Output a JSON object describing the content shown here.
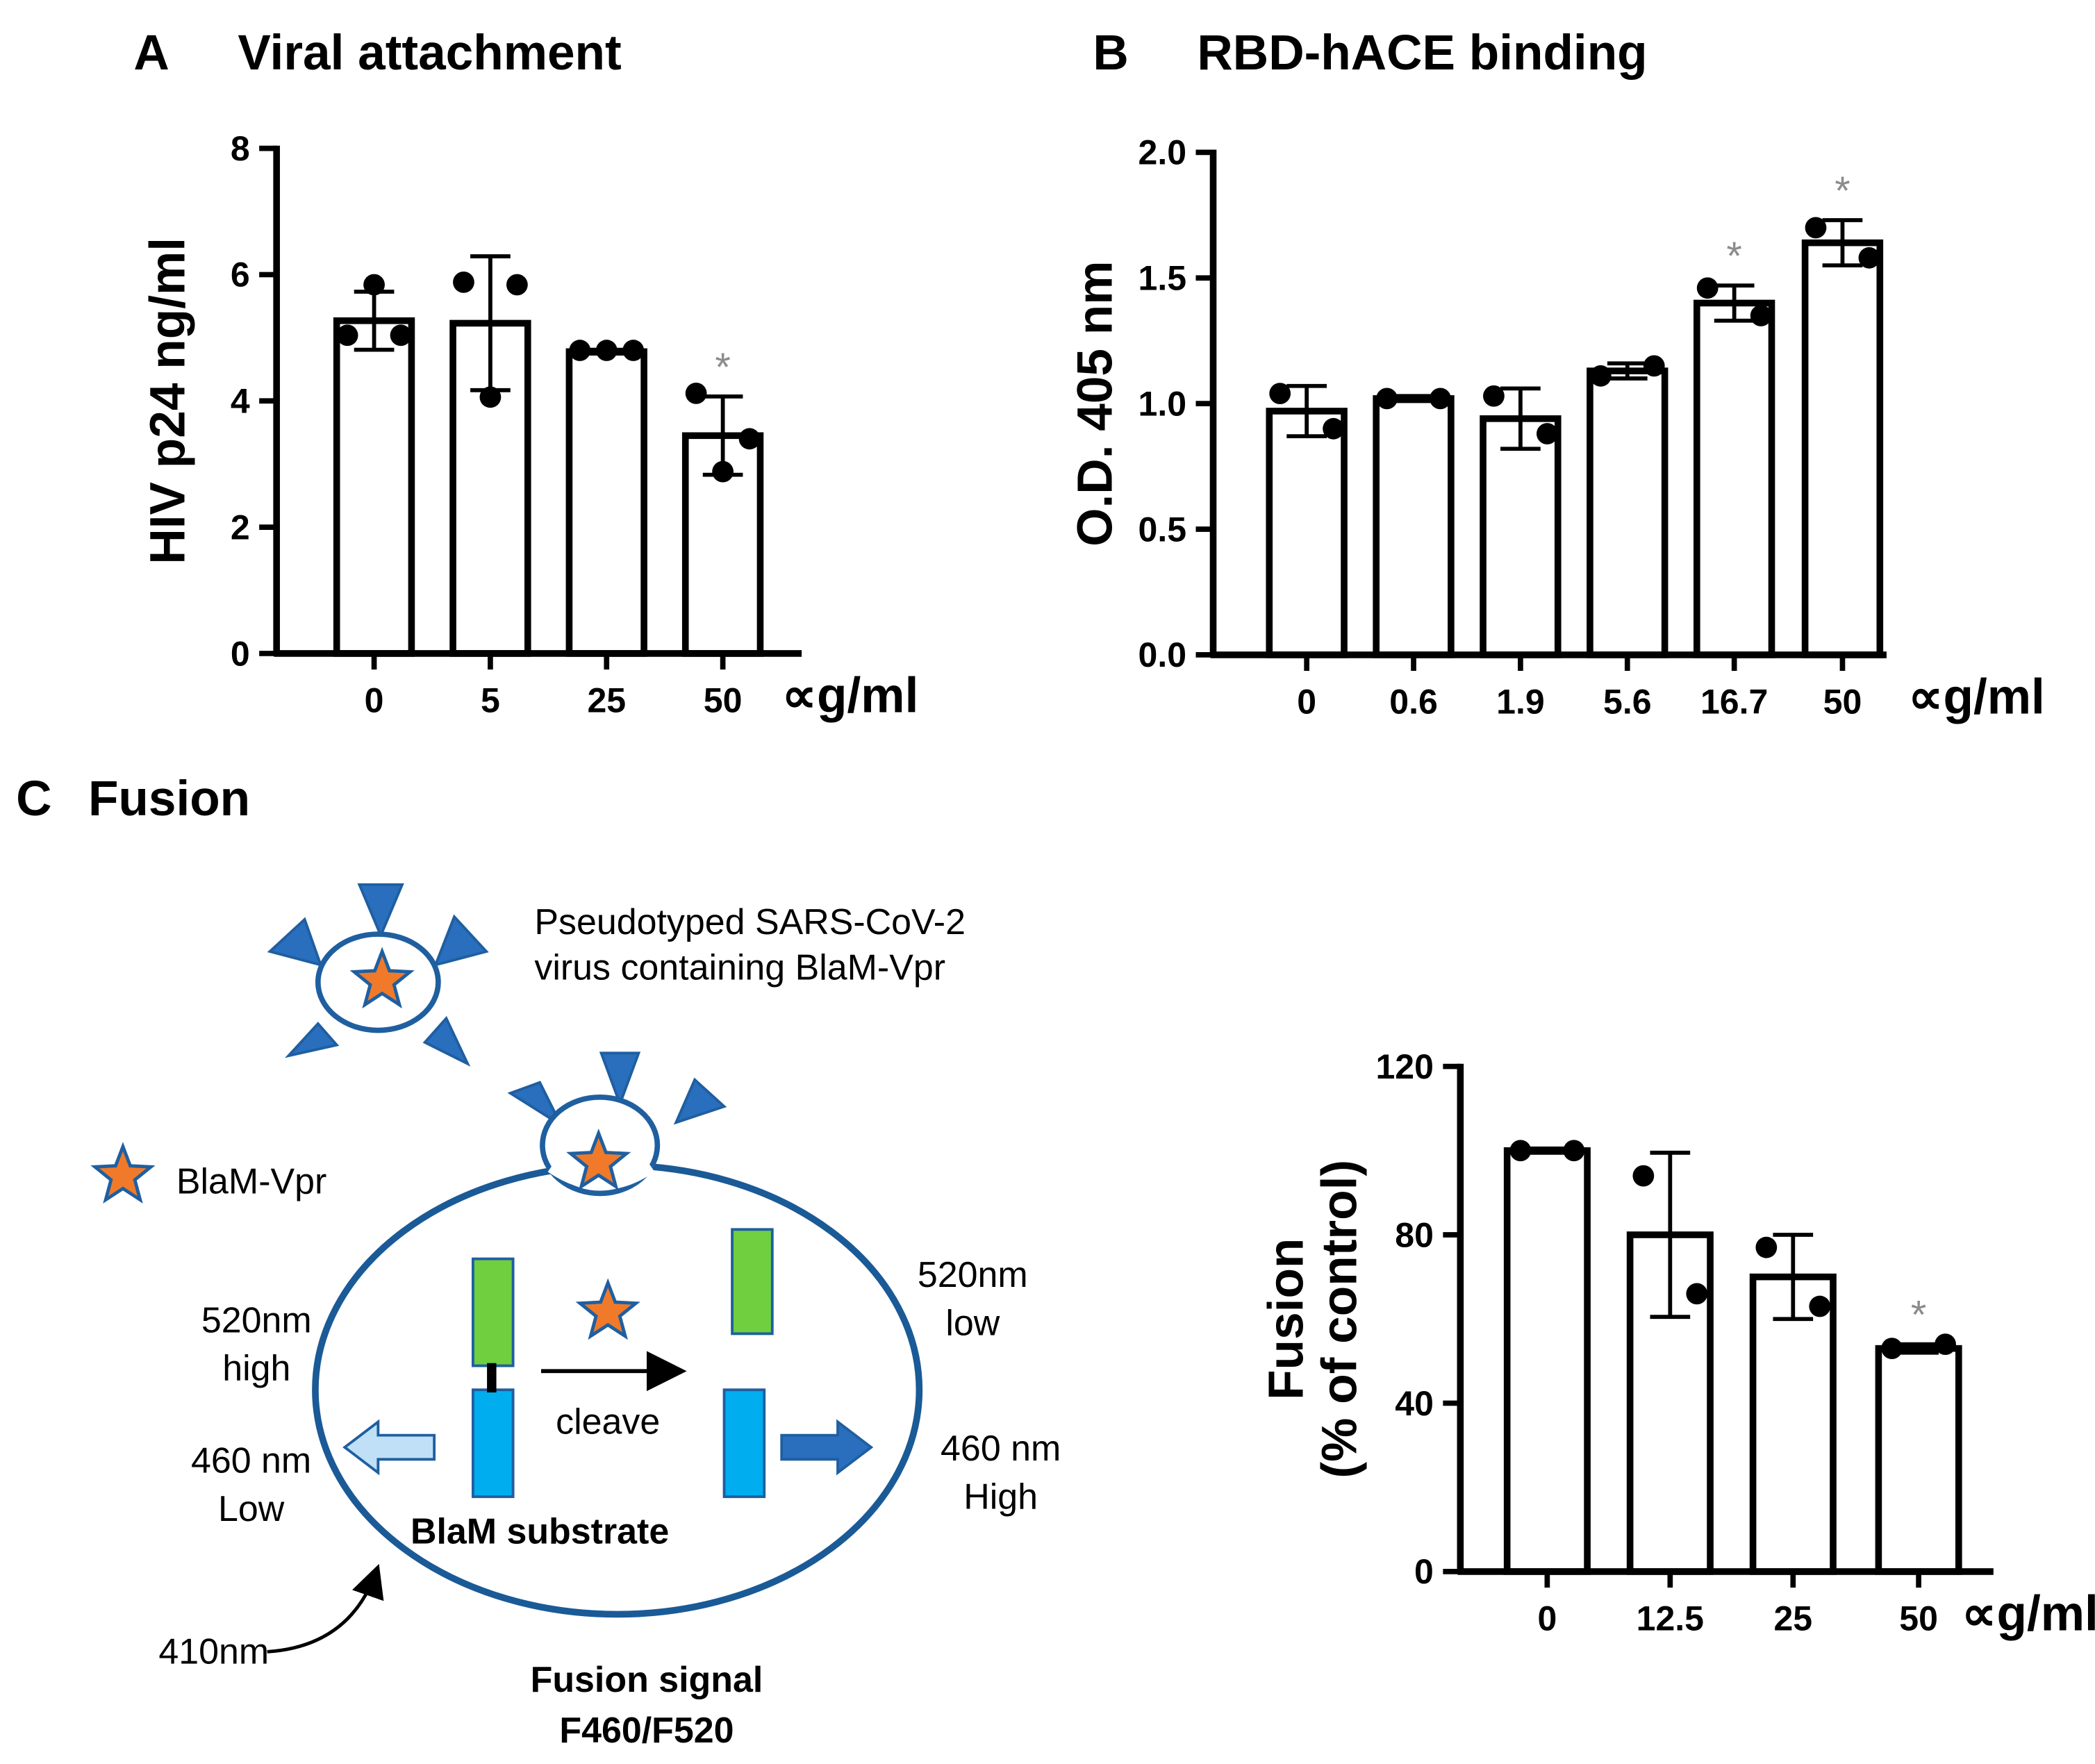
{
  "chart_data": [
    {
      "type": "bar",
      "panel": "A",
      "title": "Viral attachment",
      "ylabel": "HIV p24 ng/ml",
      "xunit": "∝g/ml",
      "categories": [
        "0",
        "5",
        "25",
        "50"
      ],
      "values": [
        5.27,
        5.23,
        4.78,
        3.45
      ],
      "errors": [
        0.46,
        1.06,
        0.03,
        0.62
      ],
      "points": [
        [
          5.04,
          5.84,
          5.04
        ],
        [
          5.88,
          4.06,
          5.84
        ],
        [
          4.8,
          4.8,
          4.8
        ],
        [
          4.12,
          2.88,
          3.4
        ]
      ],
      "significance": [
        null,
        null,
        null,
        "*"
      ],
      "color": "#ffffff",
      "ylim": [
        0,
        8
      ],
      "yticks": [
        0,
        2,
        4,
        6,
        8
      ]
    },
    {
      "type": "bar",
      "panel": "B",
      "title": "RBD-hACE binding",
      "ylabel": "O.D. 405 nm",
      "xunit": "∝g/ml",
      "categories": [
        "0",
        "0.6",
        "1.9",
        "5.6",
        "16.7",
        "50"
      ],
      "values": [
        0.97,
        1.02,
        0.94,
        1.13,
        1.4,
        1.64
      ],
      "errors": [
        0.1,
        0.01,
        0.12,
        0.03,
        0.07,
        0.09
      ],
      "points": [
        [
          1.04,
          0.9
        ],
        [
          1.02,
          1.02
        ],
        [
          1.03,
          0.88
        ],
        [
          1.11,
          1.15
        ],
        [
          1.46,
          1.35
        ],
        [
          1.7,
          1.58
        ]
      ],
      "significance": [
        null,
        null,
        null,
        null,
        "*",
        "*"
      ],
      "color": "#ffffff",
      "ylim": [
        0,
        2
      ],
      "yticks": [
        {
          "value": 0,
          "label": "0.0"
        },
        {
          "value": 0.5,
          "label": "0.5"
        },
        {
          "value": 1,
          "label": "1.0"
        },
        {
          "value": 1.5,
          "label": "1.5"
        },
        {
          "value": 2,
          "label": "2.0"
        }
      ]
    },
    {
      "type": "bar",
      "ylabel": [
        "Fusion",
        "(% of control)"
      ],
      "xunit": "∝g/ml",
      "categories": [
        "0",
        "12.5",
        "25",
        "50"
      ],
      "values": [
        100,
        80,
        70,
        53
      ],
      "errors": [
        0.5,
        19.5,
        10,
        1
      ],
      "points": [
        [
          100,
          100
        ],
        [
          94,
          66
        ],
        [
          77,
          63
        ],
        [
          53,
          54
        ]
      ],
      "significance": [
        null,
        null,
        null,
        "*"
      ],
      "color": "#ffffff",
      "ylim": [
        0,
        120
      ],
      "yticks": [
        0,
        40,
        80,
        120
      ]
    }
  ],
  "diagram": {
    "panel": "C",
    "title": "Fusion",
    "virus_label": [
      "Pseudotyped SARS-CoV-2",
      "virus containing  BlaM-Vpr"
    ],
    "legend_label": "BlaM-Vpr",
    "left_top": [
      "520nm",
      "high"
    ],
    "left_bottom": [
      "460 nm",
      "Low"
    ],
    "right_top": [
      "520nm",
      "low"
    ],
    "right_bottom": [
      "460 nm",
      "High"
    ],
    "cleave": "cleave",
    "substrate": "BlaM substrate",
    "excitation": "410nm",
    "signal": [
      "Fusion signal",
      "F460/F520"
    ]
  }
}
